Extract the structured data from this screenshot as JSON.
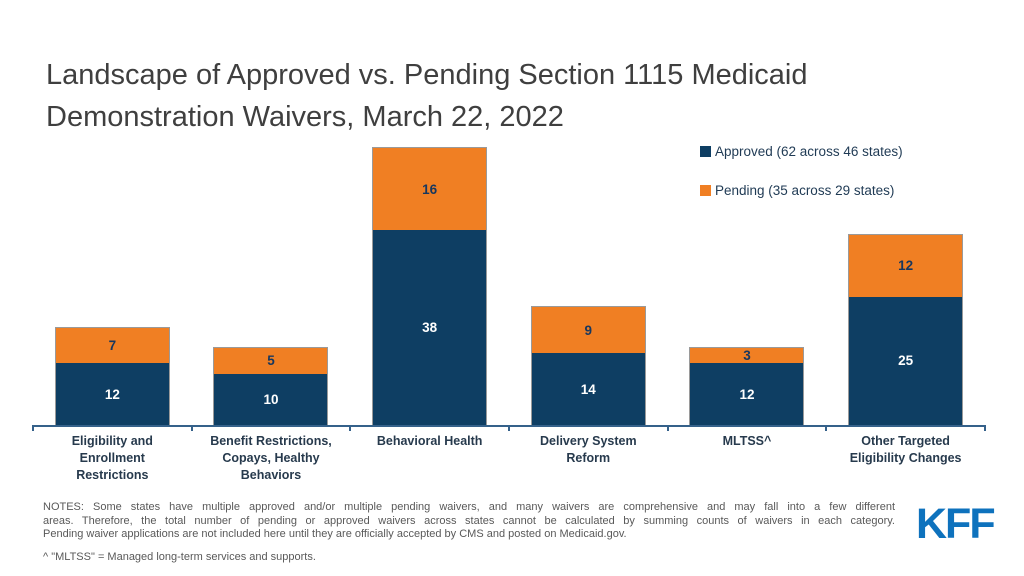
{
  "title": {
    "lines": [
      "Landscape of Approved vs. Pending Section 1115 Medicaid",
      "Demonstration Waivers, March 22, 2022"
    ]
  },
  "legend": {
    "items": [
      {
        "name": "Approved",
        "label": "Approved (62 across 46 states)",
        "color": "#0E3E63"
      },
      {
        "name": "Pending",
        "label": "Pending (35 across 29 states)",
        "color": "#F07F23"
      }
    ]
  },
  "chart_data": {
    "type": "bar",
    "stacked": true,
    "title": "Landscape of Approved vs. Pending Section 1115 Medicaid Demonstration Waivers, March 22, 2022",
    "categories": [
      "Eligibility and Enrollment Restrictions",
      "Benefit Restrictions, Copays, Healthy Behaviors",
      "Behavioral Health",
      "Delivery System Reform",
      "MLTSS^",
      "Other Targeted Eligibility Changes"
    ],
    "series": [
      {
        "name": "Approved",
        "values": [
          12,
          10,
          38,
          14,
          12,
          25
        ],
        "color": "#0E3E63",
        "label_color": "#FFFFFF"
      },
      {
        "name": "Pending",
        "values": [
          7,
          5,
          16,
          9,
          3,
          12
        ],
        "color": "#F07F23",
        "label_color": "#17375E"
      }
    ],
    "xlabel": "",
    "ylabel": "",
    "ylim": [
      0,
      54
    ],
    "grid": false,
    "legend_position": "top-right",
    "axis_color": "#35618A"
  },
  "notes": {
    "lines": [
      "NOTES: Some states have multiple approved and/or multiple pending waivers, and many waivers are comprehensive and may fall into a few different",
      "areas. Therefore, the total number of pending or approved waivers across states cannot be calculated by summing counts of waivers in each category.",
      "Pending waiver applications are not included here until they are officially accepted by CMS and posted on Medicaid.gov."
    ],
    "footnote": "^ \"MLTSS\" = Managed long-term services and supports."
  },
  "logo": {
    "text": "KFF",
    "color": "#0E72BD"
  }
}
